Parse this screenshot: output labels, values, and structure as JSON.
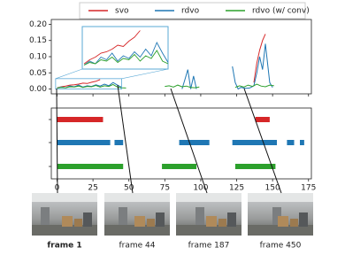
{
  "chart_data": {
    "type": "line",
    "xlim": [
      -4,
      177
    ],
    "xticks": [
      0,
      25,
      50,
      75,
      100,
      125,
      150,
      175
    ],
    "ylim": [
      -0.015,
      0.215
    ],
    "yticks": [
      {
        "value": 0,
        "label": "0.00"
      },
      {
        "value": 0.05,
        "label": "0.05"
      },
      {
        "value": 0.1,
        "label": "0.10"
      },
      {
        "value": 0.15,
        "label": "0.15"
      },
      {
        "value": 0.2,
        "label": "0.20"
      }
    ],
    "inset": {
      "xlim": [
        -1,
        45
      ],
      "ylim": [
        0,
        0.032
      ]
    },
    "series": [
      {
        "name": "svo",
        "color": "#d62728",
        "x": [
          0,
          3,
          6,
          9,
          12,
          15,
          18,
          21,
          24,
          27,
          30,
          33,
          137,
          139,
          141,
          143,
          145
        ],
        "values": [
          0.004,
          0.007,
          0.009,
          0.012,
          0.013,
          0.015,
          0.018,
          0.017,
          0.021,
          0.024,
          0.029,
          null,
          0.02,
          0.08,
          0.12,
          0.15,
          0.17
        ],
        "segments": [
          [
            0,
            32
          ],
          [
            138,
            148
          ]
        ]
      },
      {
        "name": "rdvo",
        "color": "#1f77b4",
        "x": [
          0,
          3,
          6,
          9,
          12,
          15,
          18,
          21,
          24,
          27,
          30,
          33,
          36,
          39,
          42,
          45,
          60,
          87,
          89,
          91,
          93,
          95,
          97,
          110,
          122,
          124,
          126,
          128,
          131,
          134,
          137,
          139,
          141,
          143,
          145,
          148,
          150
        ],
        "values": [
          0.003,
          0.006,
          0.004,
          0.009,
          0.007,
          0.012,
          0.006,
          0.01,
          0.008,
          0.013,
          0.009,
          0.015,
          0.01,
          0.02,
          0.012,
          0.005,
          null,
          0.0,
          0.03,
          0.06,
          0.0,
          0.04,
          0.0,
          null,
          0.07,
          0.02,
          0.0,
          0.005,
          0.002,
          0.003,
          0.01,
          0.05,
          0.1,
          0.06,
          0.14,
          0.02,
          0.005
        ],
        "segments": [
          [
            0,
            37
          ],
          [
            40,
            46
          ],
          [
            85,
            106
          ],
          [
            122,
            153
          ],
          [
            160,
            165
          ],
          [
            169,
            172
          ]
        ]
      },
      {
        "name": "rdvo (w/ conv)",
        "color": "#2ca02c",
        "x": [
          0,
          3,
          6,
          9,
          12,
          15,
          18,
          21,
          24,
          27,
          30,
          33,
          36,
          39,
          42,
          45,
          48,
          60,
          75,
          78,
          81,
          84,
          87,
          90,
          93,
          96,
          99,
          110,
          124,
          127,
          130,
          133,
          136,
          139,
          142,
          145,
          148,
          151
        ],
        "values": [
          0.003,
          0.005,
          0.004,
          0.007,
          0.006,
          0.009,
          0.005,
          0.008,
          0.007,
          0.011,
          0.006,
          0.01,
          0.008,
          0.014,
          0.006,
          0.004,
          0.003,
          null,
          0.008,
          0.01,
          0.006,
          0.012,
          0.007,
          0.009,
          0.005,
          0.004,
          0.006,
          null,
          0.005,
          0.01,
          0.006,
          0.012,
          0.008,
          0.015,
          0.009,
          0.007,
          0.012,
          0.01
        ],
        "segments": [
          [
            0,
            46
          ],
          [
            73,
            97
          ],
          [
            124,
            152
          ]
        ]
      }
    ],
    "frames": [
      "frame 1",
      "frame 44",
      "frame 187",
      "frame 450"
    ]
  }
}
